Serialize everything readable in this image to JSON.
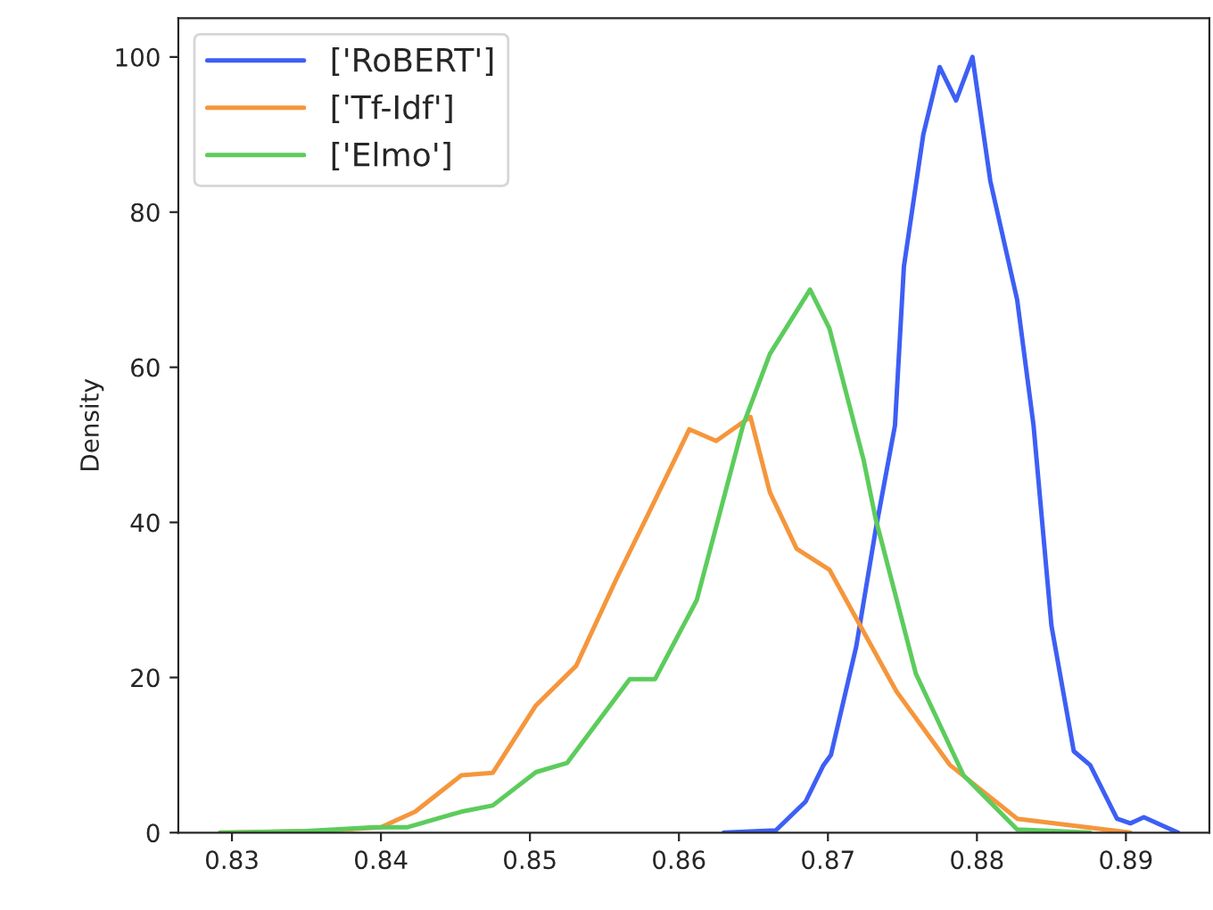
{
  "chart_data": {
    "type": "line",
    "ylabel": "Density",
    "xlim": [
      0.8264,
      0.8956
    ],
    "ylim": [
      0,
      105
    ],
    "xticks": [
      {
        "value": 0.83,
        "label": "0.83"
      },
      {
        "value": 0.84,
        "label": "0.84"
      },
      {
        "value": 0.85,
        "label": "0.85"
      },
      {
        "value": 0.86,
        "label": "0.86"
      },
      {
        "value": 0.87,
        "label": "0.87"
      },
      {
        "value": 0.88,
        "label": "0.88"
      },
      {
        "value": 0.89,
        "label": "0.89"
      }
    ],
    "yticks": [
      0,
      20,
      40,
      60,
      80,
      100
    ],
    "grid": false,
    "legend": "top left",
    "marker": "none",
    "line_style": "solid",
    "series": [
      {
        "name": "['RoBERT']",
        "color": "#3d5ff5",
        "x": [
          0.863,
          0.8665,
          0.8685,
          0.8697,
          0.8702,
          0.8719,
          0.8732,
          0.8745,
          0.8751,
          0.8764,
          0.8775,
          0.8786,
          0.8797,
          0.8809,
          0.8827,
          0.8838,
          0.885,
          0.8865,
          0.8876,
          0.8894,
          0.8903,
          0.8912,
          0.8935
        ],
        "values": [
          0,
          0.3,
          4,
          8.7,
          10,
          24,
          39,
          52.5,
          73,
          90,
          98.7,
          94.4,
          100,
          84,
          68.7,
          52.5,
          26.7,
          10.5,
          8.7,
          1.8,
          1.2,
          2,
          0
        ]
      },
      {
        "name": "['Tf-Idf']",
        "color": "#f5963c",
        "x": [
          0.8292,
          0.836,
          0.84,
          0.8423,
          0.8454,
          0.8475,
          0.8504,
          0.8531,
          0.8558,
          0.858,
          0.8607,
          0.8625,
          0.8648,
          0.8661,
          0.8679,
          0.8701,
          0.8746,
          0.8782,
          0.8827,
          0.8903
        ],
        "values": [
          0,
          0.2,
          0.7,
          2.7,
          7.4,
          7.7,
          16.4,
          21.5,
          32.7,
          41.3,
          52,
          50.5,
          53.6,
          43.9,
          36.6,
          33.9,
          18.2,
          8.7,
          1.8,
          0
        ]
      },
      {
        "name": "['Elmo']",
        "color": "#5ccc5c",
        "x": [
          0.8292,
          0.835,
          0.8396,
          0.8418,
          0.8454,
          0.8475,
          0.8504,
          0.8525,
          0.8567,
          0.8584,
          0.8612,
          0.8643,
          0.8661,
          0.8688,
          0.8701,
          0.8724,
          0.8732,
          0.8759,
          0.8791,
          0.8827,
          0.8876
        ],
        "values": [
          0,
          0.2,
          0.7,
          0.7,
          2.7,
          3.5,
          7.8,
          9,
          19.8,
          19.8,
          30,
          52.5,
          61.7,
          70,
          65,
          48,
          40.5,
          20.5,
          7.4,
          0.4,
          0
        ]
      }
    ]
  }
}
